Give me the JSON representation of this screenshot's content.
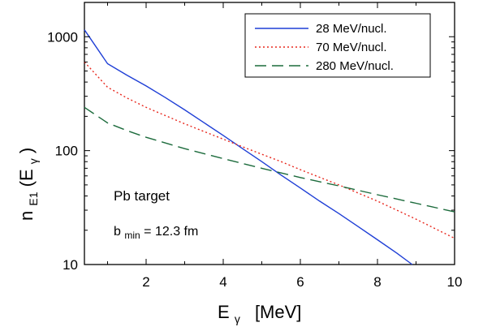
{
  "chart_data": {
    "type": "line",
    "xlabel": {
      "main": "E",
      "sub": "γ",
      "unit": "[MeV]"
    },
    "ylabel": {
      "pre": "n",
      "sub": "E1",
      "mid": "(E",
      "sub2": "γ",
      "post": ")"
    },
    "xlim": [
      0.4,
      10
    ],
    "ylim": [
      10,
      2000
    ],
    "yscale": "log",
    "x_ticks": [
      2,
      4,
      6,
      8,
      10
    ],
    "x_tick_labels": [
      "2",
      "4",
      "6",
      "8",
      "10"
    ],
    "y_ticks": [
      10,
      100,
      1000
    ],
    "y_tick_labels": [
      "10",
      "100",
      "1000"
    ],
    "grid": false,
    "legend_position": "top-right",
    "series": [
      {
        "name": "28 MeV/nucl.",
        "color": "#1f3fd6",
        "dash": "solid",
        "x": [
          0.4,
          1,
          1.5,
          2,
          2.5,
          3,
          3.5,
          4,
          4.5,
          5,
          5.5,
          6,
          6.5,
          7,
          7.5,
          8,
          8.5,
          8.9
        ],
        "y": [
          1150,
          580,
          460,
          370,
          292,
          228,
          176,
          136,
          104,
          80,
          61,
          47,
          36,
          28,
          21.5,
          16.5,
          12.6,
          10
        ]
      },
      {
        "name": "70 MeV/nucl.",
        "color": "#e8281e",
        "dash": "dotted",
        "x": [
          0.4,
          1,
          1.5,
          2,
          3,
          4,
          4.5,
          5,
          5.5,
          6,
          7,
          8,
          9,
          10
        ],
        "y": [
          600,
          360,
          290,
          240,
          172,
          126,
          108,
          93,
          80,
          68,
          50,
          36,
          25,
          17
        ]
      },
      {
        "name": "280 MeV/nucl.",
        "color": "#1c6b3c",
        "dash": "dashed",
        "x": [
          0.4,
          1,
          1.5,
          2,
          3,
          4,
          5,
          6,
          7,
          8,
          9,
          10
        ],
        "y": [
          240,
          175,
          150,
          131,
          104,
          85,
          70,
          58,
          49,
          41,
          34.5,
          29
        ]
      }
    ],
    "annotations": {
      "target": "Pb target",
      "bmin_pre": "b",
      "bmin_sub": "min",
      "bmin_post": " = 12.3 fm"
    }
  }
}
